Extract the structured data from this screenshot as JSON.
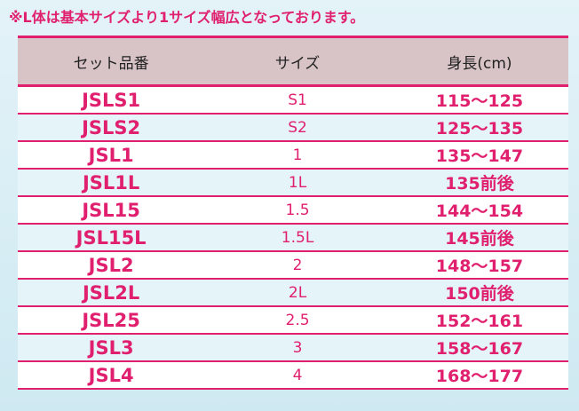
{
  "note": "※L体は基本サイズより1サイズ幅広となっております。",
  "table": {
    "headers": [
      "セット品番",
      "サイズ",
      "身長(cm)"
    ],
    "rows": [
      [
        "JSLS1",
        "S1",
        "115〜125"
      ],
      [
        "JSLS2",
        "S2",
        "125〜135"
      ],
      [
        "JSL1",
        "1",
        "135〜147"
      ],
      [
        "JSL1L",
        "1L",
        "135前後"
      ],
      [
        "JSL15",
        "1.5",
        "144〜154"
      ],
      [
        "JSL15L",
        "1.5L",
        "145前後"
      ],
      [
        "JSL2",
        "2",
        "148〜157"
      ],
      [
        "JSL2L",
        "2L",
        "150前後"
      ],
      [
        "JSL25",
        "2.5",
        "152〜161"
      ],
      [
        "JSL3",
        "3",
        "158〜167"
      ],
      [
        "JSL4",
        "4",
        "168〜177"
      ]
    ]
  }
}
